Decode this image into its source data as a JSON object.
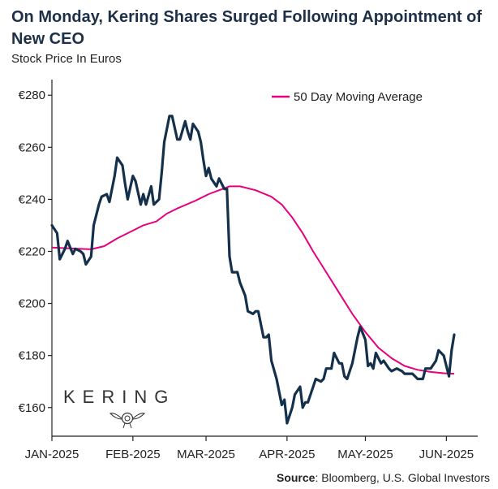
{
  "title": "On Monday, Kering Shares Surged Following Appointment of New CEO",
  "subtitle": "Stock Price In Euros",
  "source_label": "Source",
  "source_text": ": Bloomberg, U.S. Global Investors",
  "logo": {
    "text": "KERING"
  },
  "colors": {
    "price": "#14304a",
    "ma": "#e6007e",
    "axis": "#222222",
    "title": "#1e3048"
  },
  "chart_data": {
    "type": "line",
    "title": "On Monday, Kering Shares Surged Following Appointment of New CEO",
    "ylabel": "Stock Price In Euros",
    "xlabel": "",
    "ylim": [
      149,
      286
    ],
    "xlim": [
      0,
      163
    ],
    "grid": false,
    "legend": "top-right",
    "x_ticks": [
      {
        "x": 0,
        "label": "JAN-2025"
      },
      {
        "x": 31,
        "label": "FEB-2025"
      },
      {
        "x": 59,
        "label": "MAR-2025"
      },
      {
        "x": 90,
        "label": "APR-2025"
      },
      {
        "x": 120,
        "label": "MAY-2025"
      },
      {
        "x": 151,
        "label": "JUN-2025"
      }
    ],
    "y_ticks": [
      {
        "y": 160,
        "label": "€160"
      },
      {
        "y": 180,
        "label": "€180"
      },
      {
        "y": 200,
        "label": "€200"
      },
      {
        "y": 220,
        "label": "€220"
      },
      {
        "y": 240,
        "label": "€240"
      },
      {
        "y": 260,
        "label": "€260"
      },
      {
        "y": 280,
        "label": "€280"
      }
    ],
    "series": [
      {
        "name": "Stock Price",
        "points": [
          [
            0,
            230
          ],
          [
            2,
            227
          ],
          [
            3,
            217
          ],
          [
            5,
            221
          ],
          [
            6,
            224
          ],
          [
            8,
            219
          ],
          [
            9,
            221
          ],
          [
            11,
            220
          ],
          [
            12,
            219
          ],
          [
            13,
            215
          ],
          [
            15,
            218
          ],
          [
            16,
            230
          ],
          [
            18,
            238
          ],
          [
            19,
            241
          ],
          [
            21,
            242
          ],
          [
            22,
            239
          ],
          [
            24,
            249
          ],
          [
            25,
            256
          ],
          [
            27,
            253
          ],
          [
            28,
            246
          ],
          [
            29,
            240
          ],
          [
            31,
            249
          ],
          [
            32,
            247
          ],
          [
            34,
            238
          ],
          [
            35,
            242
          ],
          [
            36,
            238
          ],
          [
            38,
            245
          ],
          [
            39,
            238
          ],
          [
            41,
            240
          ],
          [
            42,
            250
          ],
          [
            43,
            262
          ],
          [
            45,
            272
          ],
          [
            46,
            272
          ],
          [
            48,
            263
          ],
          [
            49,
            263
          ],
          [
            51,
            270
          ],
          [
            52,
            266
          ],
          [
            53,
            263
          ],
          [
            54,
            269
          ],
          [
            56,
            266
          ],
          [
            57,
            262
          ],
          [
            58,
            255
          ],
          [
            59,
            249
          ],
          [
            60,
            252
          ],
          [
            61,
            248
          ],
          [
            63,
            245
          ],
          [
            64,
            248
          ],
          [
            66,
            244
          ],
          [
            67,
            244
          ],
          [
            68,
            218
          ],
          [
            69,
            212
          ],
          [
            71,
            212
          ],
          [
            72,
            208
          ],
          [
            74,
            203
          ],
          [
            75,
            197
          ],
          [
            77,
            196
          ],
          [
            78,
            197
          ],
          [
            79,
            197
          ],
          [
            81,
            187
          ],
          [
            82,
            187
          ],
          [
            83,
            188
          ],
          [
            84,
            178
          ],
          [
            86,
            171
          ],
          [
            88,
            161
          ],
          [
            89,
            163
          ],
          [
            90,
            154
          ],
          [
            92,
            160
          ],
          [
            93,
            165
          ],
          [
            95,
            168
          ],
          [
            96,
            160
          ],
          [
            97,
            162
          ],
          [
            98,
            162
          ],
          [
            100,
            168
          ],
          [
            101,
            171
          ],
          [
            103,
            170
          ],
          [
            104,
            171
          ],
          [
            105,
            175
          ],
          [
            106,
            175
          ],
          [
            107,
            175
          ],
          [
            108,
            181
          ],
          [
            110,
            177
          ],
          [
            111,
            177
          ],
          [
            112,
            172
          ],
          [
            113,
            171
          ],
          [
            114,
            174
          ],
          [
            115,
            177
          ],
          [
            117,
            187
          ],
          [
            118,
            191
          ],
          [
            120,
            186
          ],
          [
            121,
            176
          ],
          [
            122,
            177
          ],
          [
            123,
            175
          ],
          [
            124,
            181
          ],
          [
            126,
            177
          ],
          [
            127,
            178
          ],
          [
            129,
            175
          ],
          [
            130,
            174
          ],
          [
            132,
            175
          ],
          [
            134,
            174
          ],
          [
            135,
            173
          ],
          [
            137,
            173
          ],
          [
            138,
            173
          ],
          [
            139,
            172
          ],
          [
            140,
            171
          ],
          [
            142,
            171
          ],
          [
            143,
            175
          ],
          [
            145,
            175
          ],
          [
            147,
            178
          ],
          [
            148,
            182
          ],
          [
            150,
            180
          ],
          [
            151,
            176
          ],
          [
            152,
            172
          ],
          [
            153,
            182
          ],
          [
            154,
            188
          ]
        ]
      },
      {
        "name": "50 Day Moving Average",
        "points": [
          [
            0,
            221.5
          ],
          [
            10,
            221
          ],
          [
            15,
            220.8
          ],
          [
            20,
            222
          ],
          [
            25,
            225
          ],
          [
            30,
            227.5
          ],
          [
            35,
            230
          ],
          [
            40,
            231.5
          ],
          [
            44,
            234.5
          ],
          [
            48,
            236.5
          ],
          [
            55,
            239.5
          ],
          [
            60,
            242
          ],
          [
            64,
            243.5
          ],
          [
            68,
            245
          ],
          [
            72,
            245
          ],
          [
            78,
            243.5
          ],
          [
            84,
            241
          ],
          [
            88,
            238
          ],
          [
            92,
            233
          ],
          [
            96,
            227
          ],
          [
            100,
            220
          ],
          [
            105,
            212
          ],
          [
            110,
            204
          ],
          [
            115,
            196
          ],
          [
            120,
            189
          ],
          [
            125,
            183
          ],
          [
            130,
            179
          ],
          [
            135,
            176
          ],
          [
            140,
            174.5
          ],
          [
            145,
            173.7
          ],
          [
            150,
            173.2
          ],
          [
            154,
            173
          ]
        ]
      }
    ]
  }
}
